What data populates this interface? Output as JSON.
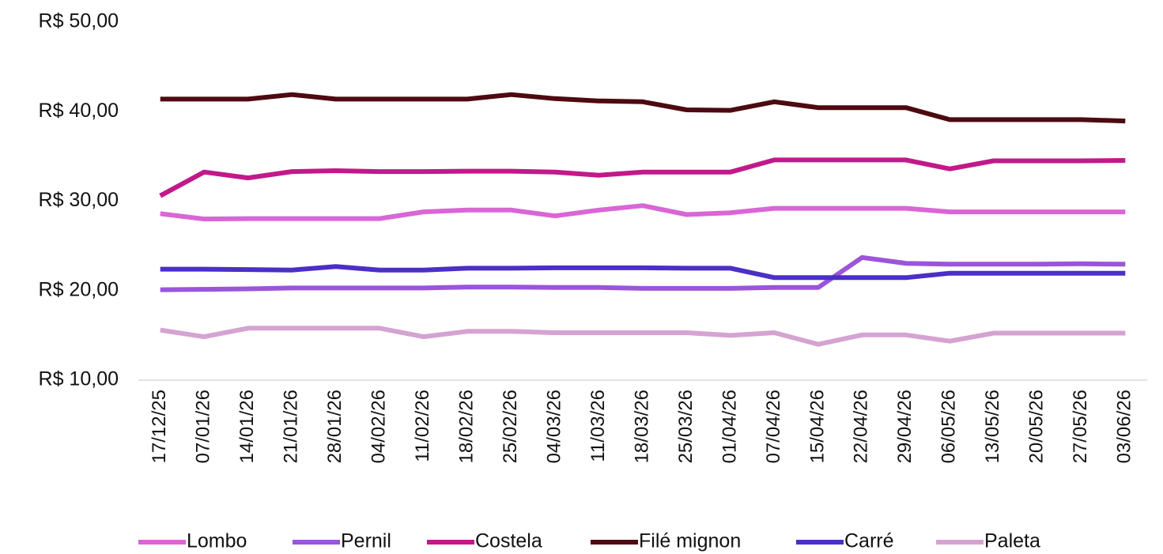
{
  "chart_data": {
    "type": "line",
    "title": "",
    "xlabel": "",
    "ylabel": "",
    "ylim": [
      10,
      50
    ],
    "yticks": [
      10,
      20,
      30,
      40,
      50
    ],
    "ytick_labels": [
      "R$ 10,00",
      "R$ 20,00",
      "R$ 30,00",
      "R$ 40,00",
      "R$ 50,00"
    ],
    "grid": false,
    "legend_position": "bottom",
    "categories": [
      "17/12/25",
      "07/01/26",
      "14/01/26",
      "21/01/26",
      "28/01/26",
      "04/02/26",
      "11/02/26",
      "18/02/26",
      "25/02/26",
      "04/03/26",
      "11/03/26",
      "18/03/26",
      "25/03/26",
      "01/04/26",
      "07/04/26",
      "15/04/26",
      "22/04/26",
      "29/04/26",
      "06/05/26",
      "13/05/26",
      "20/05/26",
      "27/05/26",
      "03/06/26"
    ],
    "series": [
      {
        "name": "Lombo",
        "color": "#D966D6",
        "values": [
          28.6,
          28.0,
          28.05,
          28.05,
          28.05,
          28.05,
          28.8,
          29.0,
          29.0,
          28.35,
          29.0,
          29.5,
          28.5,
          28.7,
          29.2,
          29.2,
          29.2,
          29.2,
          28.8,
          28.8,
          28.8,
          28.8,
          28.8
        ]
      },
      {
        "name": "Pernil",
        "color": "#9B55D9",
        "values": [
          20.1,
          20.15,
          20.2,
          20.3,
          20.3,
          20.3,
          20.3,
          20.4,
          20.4,
          20.35,
          20.35,
          20.25,
          20.25,
          20.25,
          20.35,
          20.35,
          23.7,
          23.05,
          22.95,
          22.95,
          22.95,
          23.0,
          22.95
        ]
      },
      {
        "name": "Costela",
        "color": "#C2198A",
        "values": [
          30.6,
          33.25,
          32.6,
          33.3,
          33.4,
          33.3,
          33.3,
          33.35,
          33.35,
          33.25,
          32.9,
          33.25,
          33.25,
          33.25,
          34.6,
          34.6,
          34.6,
          34.6,
          33.6,
          34.5,
          34.5,
          34.5,
          34.55
        ]
      },
      {
        "name": "Filé mignon",
        "color": "#4D0A10",
        "values": [
          41.4,
          41.4,
          41.4,
          41.9,
          41.4,
          41.4,
          41.4,
          41.4,
          41.9,
          41.45,
          41.2,
          41.1,
          40.2,
          40.15,
          41.1,
          40.45,
          40.45,
          40.45,
          39.1,
          39.1,
          39.1,
          39.1,
          38.95
        ]
      },
      {
        "name": "Carré",
        "color": "#4B2FC6",
        "values": [
          22.4,
          22.4,
          22.35,
          22.3,
          22.7,
          22.3,
          22.3,
          22.5,
          22.5,
          22.55,
          22.55,
          22.55,
          22.5,
          22.5,
          21.45,
          21.45,
          21.45,
          21.45,
          21.95,
          21.95,
          21.95,
          21.95,
          21.95
        ]
      },
      {
        "name": "Paleta",
        "color": "#D5A3D1",
        "values": [
          15.6,
          14.85,
          15.8,
          15.8,
          15.8,
          15.8,
          14.85,
          15.45,
          15.45,
          15.3,
          15.3,
          15.3,
          15.3,
          15.0,
          15.3,
          14.0,
          15.05,
          15.05,
          14.35,
          15.25,
          15.25,
          15.25,
          15.25
        ]
      }
    ]
  }
}
